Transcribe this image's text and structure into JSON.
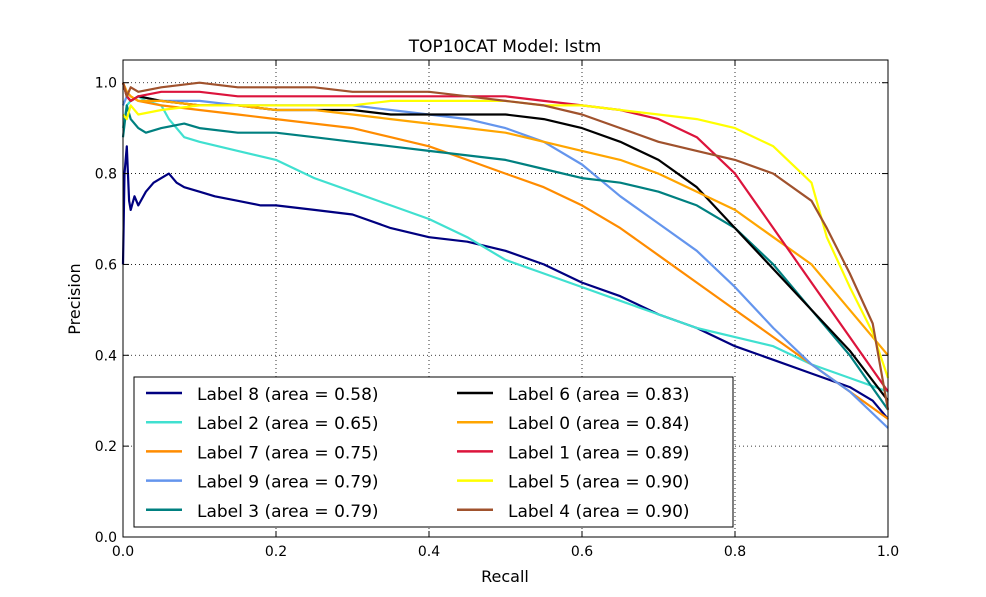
{
  "chart_data": {
    "type": "line",
    "title": "TOP10CAT Model: lstm",
    "xlabel": "Recall",
    "ylabel": "Precision",
    "xlim": [
      0.0,
      1.0
    ],
    "ylim": [
      0.0,
      1.05
    ],
    "xticks": [
      "0.0",
      "0.2",
      "0.4",
      "0.6",
      "0.8",
      "1.0"
    ],
    "yticks": [
      "0.0",
      "0.2",
      "0.4",
      "0.6",
      "0.8",
      "1.0"
    ],
    "xtick_values": [
      0.0,
      0.2,
      0.4,
      0.6,
      0.8,
      1.0
    ],
    "ytick_values": [
      0.0,
      0.2,
      0.4,
      0.6,
      0.8,
      1.0
    ],
    "grid": true,
    "legend_position": "lower-left",
    "series": [
      {
        "name": "Label 8 (area = 0.58)",
        "color": "#000080",
        "x": [
          0.0,
          0.002,
          0.005,
          0.008,
          0.01,
          0.015,
          0.02,
          0.03,
          0.04,
          0.05,
          0.06,
          0.07,
          0.08,
          0.1,
          0.12,
          0.15,
          0.18,
          0.2,
          0.25,
          0.3,
          0.35,
          0.4,
          0.45,
          0.5,
          0.55,
          0.6,
          0.65,
          0.7,
          0.75,
          0.8,
          0.85,
          0.9,
          0.95,
          0.98,
          1.0
        ],
        "y": [
          0.6,
          0.8,
          0.86,
          0.74,
          0.72,
          0.75,
          0.73,
          0.76,
          0.78,
          0.79,
          0.8,
          0.78,
          0.77,
          0.76,
          0.75,
          0.74,
          0.73,
          0.73,
          0.72,
          0.71,
          0.68,
          0.66,
          0.65,
          0.63,
          0.6,
          0.56,
          0.53,
          0.49,
          0.46,
          0.42,
          0.39,
          0.36,
          0.33,
          0.3,
          0.26
        ]
      },
      {
        "name": "Label 2 (area = 0.65)",
        "color": "#40e0d0",
        "x": [
          0.0,
          0.005,
          0.01,
          0.02,
          0.03,
          0.05,
          0.06,
          0.07,
          0.08,
          0.1,
          0.15,
          0.2,
          0.25,
          0.3,
          0.35,
          0.4,
          0.45,
          0.5,
          0.55,
          0.6,
          0.65,
          0.7,
          0.75,
          0.8,
          0.85,
          0.9,
          0.95,
          1.0
        ],
        "y": [
          0.9,
          0.95,
          0.96,
          0.97,
          0.96,
          0.95,
          0.92,
          0.9,
          0.88,
          0.87,
          0.85,
          0.83,
          0.79,
          0.76,
          0.73,
          0.7,
          0.66,
          0.61,
          0.58,
          0.55,
          0.52,
          0.49,
          0.46,
          0.44,
          0.42,
          0.38,
          0.35,
          0.32
        ]
      },
      {
        "name": "Label 7 (area = 0.75)",
        "color": "#ff8c00",
        "x": [
          0.0,
          0.005,
          0.01,
          0.02,
          0.05,
          0.1,
          0.15,
          0.2,
          0.25,
          0.3,
          0.35,
          0.4,
          0.45,
          0.5,
          0.55,
          0.6,
          0.65,
          0.7,
          0.75,
          0.8,
          0.85,
          0.9,
          0.95,
          1.0
        ],
        "y": [
          1.0,
          0.98,
          0.97,
          0.96,
          0.95,
          0.94,
          0.93,
          0.92,
          0.91,
          0.9,
          0.88,
          0.86,
          0.83,
          0.8,
          0.77,
          0.73,
          0.68,
          0.62,
          0.56,
          0.5,
          0.44,
          0.38,
          0.32,
          0.26
        ]
      },
      {
        "name": "Label 9 (area = 0.79)",
        "color": "#6495ed",
        "x": [
          0.0,
          0.005,
          0.01,
          0.02,
          0.05,
          0.1,
          0.15,
          0.2,
          0.25,
          0.3,
          0.35,
          0.4,
          0.45,
          0.5,
          0.55,
          0.6,
          0.65,
          0.7,
          0.75,
          0.8,
          0.85,
          0.9,
          0.95,
          1.0
        ],
        "y": [
          0.95,
          0.97,
          0.96,
          0.97,
          0.96,
          0.96,
          0.95,
          0.95,
          0.95,
          0.95,
          0.94,
          0.93,
          0.92,
          0.9,
          0.87,
          0.82,
          0.75,
          0.69,
          0.63,
          0.55,
          0.46,
          0.38,
          0.32,
          0.24
        ]
      },
      {
        "name": "Label 3 (area = 0.79)",
        "color": "#008080",
        "x": [
          0.0,
          0.005,
          0.01,
          0.02,
          0.03,
          0.05,
          0.08,
          0.1,
          0.15,
          0.2,
          0.25,
          0.3,
          0.35,
          0.4,
          0.45,
          0.5,
          0.55,
          0.6,
          0.65,
          0.7,
          0.75,
          0.8,
          0.85,
          0.9,
          0.95,
          1.0
        ],
        "y": [
          0.88,
          0.95,
          0.92,
          0.9,
          0.89,
          0.9,
          0.91,
          0.9,
          0.89,
          0.89,
          0.88,
          0.87,
          0.86,
          0.85,
          0.84,
          0.83,
          0.81,
          0.79,
          0.78,
          0.76,
          0.73,
          0.68,
          0.6,
          0.5,
          0.4,
          0.28
        ]
      },
      {
        "name": "Label 6 (area = 0.83)",
        "color": "#000000",
        "x": [
          0.0,
          0.005,
          0.01,
          0.02,
          0.05,
          0.1,
          0.15,
          0.2,
          0.25,
          0.3,
          0.35,
          0.4,
          0.45,
          0.5,
          0.55,
          0.6,
          0.65,
          0.7,
          0.75,
          0.8,
          0.85,
          0.9,
          0.95,
          1.0
        ],
        "y": [
          1.0,
          0.97,
          0.96,
          0.97,
          0.96,
          0.95,
          0.95,
          0.94,
          0.94,
          0.94,
          0.93,
          0.93,
          0.93,
          0.93,
          0.92,
          0.9,
          0.87,
          0.83,
          0.77,
          0.68,
          0.59,
          0.5,
          0.41,
          0.3
        ]
      },
      {
        "name": "Label 0 (area = 0.84)",
        "color": "#ffa500",
        "x": [
          0.0,
          0.005,
          0.01,
          0.02,
          0.05,
          0.1,
          0.15,
          0.2,
          0.25,
          0.3,
          0.35,
          0.4,
          0.45,
          0.5,
          0.55,
          0.6,
          0.65,
          0.7,
          0.75,
          0.8,
          0.85,
          0.9,
          0.95,
          1.0
        ],
        "y": [
          1.0,
          0.98,
          0.97,
          0.96,
          0.96,
          0.95,
          0.95,
          0.94,
          0.94,
          0.93,
          0.92,
          0.91,
          0.9,
          0.89,
          0.87,
          0.85,
          0.83,
          0.8,
          0.76,
          0.72,
          0.66,
          0.6,
          0.5,
          0.4
        ]
      },
      {
        "name": "Label 1 (area = 0.89)",
        "color": "#dc143c",
        "x": [
          0.0,
          0.005,
          0.01,
          0.02,
          0.05,
          0.1,
          0.15,
          0.2,
          0.25,
          0.3,
          0.35,
          0.4,
          0.45,
          0.5,
          0.55,
          0.6,
          0.65,
          0.7,
          0.75,
          0.8,
          0.85,
          0.9,
          0.95,
          1.0
        ],
        "y": [
          1.0,
          0.97,
          0.96,
          0.97,
          0.98,
          0.98,
          0.97,
          0.97,
          0.97,
          0.97,
          0.97,
          0.97,
          0.97,
          0.97,
          0.96,
          0.95,
          0.94,
          0.92,
          0.88,
          0.8,
          0.68,
          0.56,
          0.44,
          0.32
        ]
      },
      {
        "name": "Label 5 (area = 0.90)",
        "color": "#ffff00",
        "x": [
          0.0,
          0.005,
          0.01,
          0.02,
          0.05,
          0.1,
          0.15,
          0.2,
          0.25,
          0.3,
          0.35,
          0.4,
          0.45,
          0.5,
          0.55,
          0.6,
          0.65,
          0.7,
          0.75,
          0.8,
          0.85,
          0.9,
          0.92,
          0.95,
          0.98,
          1.0
        ],
        "y": [
          0.93,
          0.92,
          0.95,
          0.93,
          0.94,
          0.95,
          0.95,
          0.95,
          0.95,
          0.95,
          0.96,
          0.96,
          0.96,
          0.96,
          0.95,
          0.95,
          0.94,
          0.93,
          0.92,
          0.9,
          0.86,
          0.78,
          0.66,
          0.55,
          0.45,
          0.35
        ]
      },
      {
        "name": "Label 4 (area = 0.90)",
        "color": "#a0522d",
        "x": [
          0.0,
          0.005,
          0.01,
          0.02,
          0.05,
          0.1,
          0.15,
          0.2,
          0.25,
          0.3,
          0.35,
          0.4,
          0.45,
          0.5,
          0.55,
          0.6,
          0.65,
          0.7,
          0.75,
          0.8,
          0.85,
          0.9,
          0.92,
          0.95,
          0.98,
          1.0
        ],
        "y": [
          1.0,
          0.97,
          0.99,
          0.98,
          0.99,
          1.0,
          0.99,
          0.99,
          0.99,
          0.98,
          0.98,
          0.98,
          0.97,
          0.96,
          0.95,
          0.93,
          0.9,
          0.87,
          0.85,
          0.83,
          0.8,
          0.74,
          0.68,
          0.58,
          0.47,
          0.28
        ]
      }
    ]
  }
}
